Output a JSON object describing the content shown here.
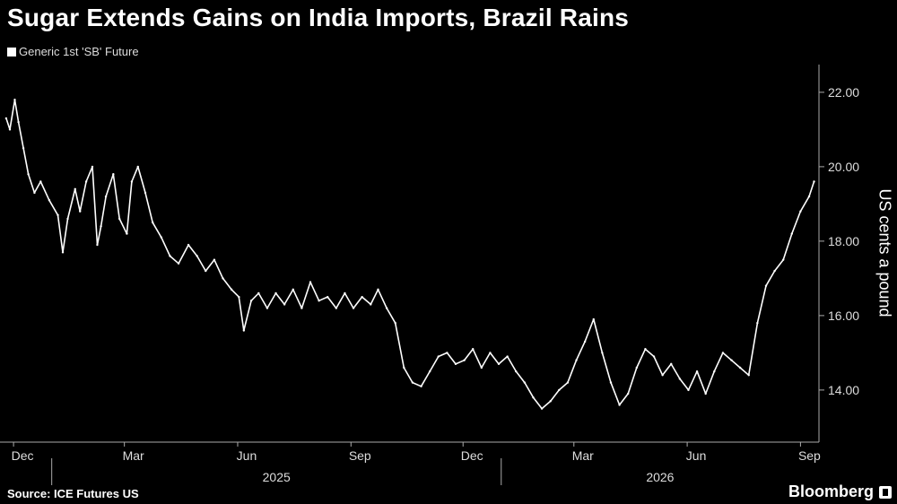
{
  "header": {
    "title": "Sugar Extends Gains on India Imports, Brazil Rains",
    "legend_label": "Generic 1st 'SB' Future"
  },
  "footer": {
    "source": "Source: ICE Futures US",
    "brand": "Bloomberg"
  },
  "colors": {
    "background": "#000000",
    "series": "#ffffff",
    "axis": "#bbbbbb"
  },
  "chart_data": {
    "type": "line",
    "title": "Sugar Extends Gains on India Imports, Brazil Rains",
    "ylabel": "US cents a pound",
    "xlabel": "",
    "ylim": [
      12.6,
      22.6
    ],
    "yticks": [
      "22.00",
      "20.00",
      "18.00",
      "16.00",
      "14.00"
    ],
    "ytick_values": [
      22,
      20,
      18,
      16,
      14
    ],
    "x_month_labels": [
      "Dec",
      "Mar",
      "Jun",
      "Sep",
      "Dec",
      "Mar",
      "Jun",
      "Sep"
    ],
    "x_year_labels": [
      "2025",
      "2026"
    ],
    "grid": false,
    "legend": "top-left",
    "series": [
      {
        "name": "Generic 1st 'SB' Future",
        "x": [
          "2024-11-25",
          "2024-11-28",
          "2024-12-02",
          "2024-12-05",
          "2024-12-09",
          "2024-12-13",
          "2024-12-18",
          "2024-12-23",
          "2024-12-30",
          "2025-01-06",
          "2025-01-10",
          "2025-01-14",
          "2025-01-20",
          "2025-01-24",
          "2025-01-29",
          "2025-02-03",
          "2025-02-07",
          "2025-02-10",
          "2025-02-14",
          "2025-02-20",
          "2025-02-25",
          "2025-03-03",
          "2025-03-07",
          "2025-03-12",
          "2025-03-18",
          "2025-03-24",
          "2025-03-31",
          "2025-04-07",
          "2025-04-14",
          "2025-04-22",
          "2025-04-29",
          "2025-05-06",
          "2025-05-13",
          "2025-05-20",
          "2025-05-27",
          "2025-06-02",
          "2025-06-06",
          "2025-06-12",
          "2025-06-18",
          "2025-06-25",
          "2025-07-02",
          "2025-07-09",
          "2025-07-16",
          "2025-07-23",
          "2025-07-30",
          "2025-08-06",
          "2025-08-13",
          "2025-08-20",
          "2025-08-27",
          "2025-09-03",
          "2025-09-10",
          "2025-09-17",
          "2025-09-23",
          "2025-09-30",
          "2025-10-07",
          "2025-10-14",
          "2025-10-21",
          "2025-10-28",
          "2025-11-04",
          "2025-11-11",
          "2025-11-18",
          "2025-11-25",
          "2025-12-02",
          "2025-12-09",
          "2025-12-16",
          "2025-12-23",
          "2025-12-30",
          "2026-01-06",
          "2026-01-13",
          "2026-01-20",
          "2026-01-27",
          "2026-02-03",
          "2026-02-10",
          "2026-02-17",
          "2026-02-24",
          "2026-03-03",
          "2026-03-10",
          "2026-03-17",
          "2026-03-24",
          "2026-03-31",
          "2026-04-07",
          "2026-04-14",
          "2026-04-21",
          "2026-04-28",
          "2026-05-05",
          "2026-05-12",
          "2026-05-19",
          "2026-05-26",
          "2026-06-02",
          "2026-06-09",
          "2026-06-16",
          "2026-06-23",
          "2026-06-30",
          "2026-07-07",
          "2026-07-14",
          "2026-07-21",
          "2026-07-28",
          "2026-08-04",
          "2026-08-11",
          "2026-08-18",
          "2026-08-25",
          "2026-09-01",
          "2026-09-08",
          "2026-09-12"
        ],
        "values": [
          21.3,
          21.0,
          21.8,
          21.2,
          20.5,
          19.8,
          19.3,
          19.6,
          19.1,
          18.7,
          17.7,
          18.6,
          19.4,
          18.8,
          19.6,
          20.0,
          17.9,
          18.4,
          19.2,
          19.8,
          18.6,
          18.2,
          19.6,
          20.0,
          19.3,
          18.5,
          18.1,
          17.6,
          17.4,
          17.9,
          17.6,
          17.2,
          17.5,
          17.0,
          16.7,
          16.5,
          15.6,
          16.4,
          16.6,
          16.2,
          16.6,
          16.3,
          16.7,
          16.2,
          16.9,
          16.4,
          16.5,
          16.2,
          16.6,
          16.2,
          16.5,
          16.3,
          16.7,
          16.2,
          15.8,
          14.6,
          14.2,
          14.1,
          14.5,
          14.9,
          15.0,
          14.7,
          14.8,
          15.1,
          14.6,
          15.0,
          14.7,
          14.9,
          14.5,
          14.2,
          13.8,
          13.5,
          13.7,
          14.0,
          14.2,
          14.8,
          15.3,
          15.9,
          15.0,
          14.2,
          13.6,
          13.9,
          14.6,
          15.1,
          14.9,
          14.4,
          14.7,
          14.3,
          14.0,
          14.5,
          13.9,
          14.5,
          15.0,
          14.8,
          14.6,
          14.4,
          15.8,
          16.8,
          17.2,
          17.5,
          18.2,
          18.8,
          19.2,
          19.6
        ]
      }
    ]
  }
}
